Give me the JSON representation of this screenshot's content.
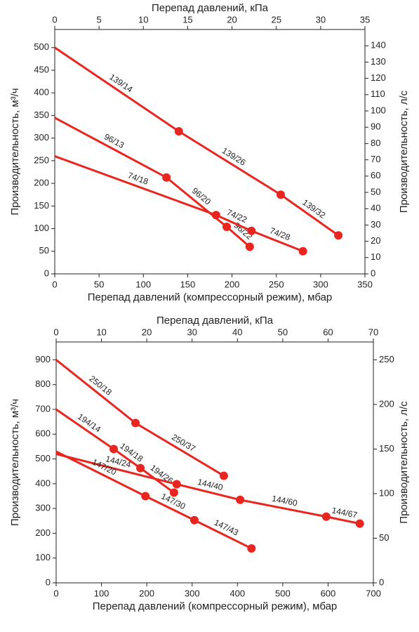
{
  "chart_data": [
    {
      "type": "line",
      "x_label": "Перепад давлений (компрессорный режим), мбар",
      "x2_label": "Перепад давлений, кПа",
      "y_label": "Производительность, м³/ч",
      "y2_label": "Производительность, л/с",
      "xlim": [
        0,
        350
      ],
      "xticks": [
        0,
        50,
        100,
        150,
        200,
        250,
        300,
        350
      ],
      "x2lim": [
        0,
        35
      ],
      "x2ticks": [
        0,
        5,
        10,
        15,
        20,
        25,
        30,
        35
      ],
      "ylim": [
        0,
        540
      ],
      "yticks": [
        0,
        50,
        100,
        150,
        200,
        250,
        300,
        350,
        400,
        450,
        500
      ],
      "y2lim": [
        0,
        150
      ],
      "y2ticks": [
        0,
        10,
        20,
        30,
        40,
        50,
        60,
        70,
        80,
        90,
        100,
        110,
        120,
        130,
        140
      ],
      "series": [
        {
          "color": "#e8261f",
          "x": [
            0,
            140,
            255,
            320
          ],
          "values": [
            500,
            315,
            175,
            85
          ],
          "segment_labels": [
            "139/14",
            "139/26",
            "139/32"
          ]
        },
        {
          "color": "#e8261f",
          "x": [
            0,
            126,
            194,
            220
          ],
          "values": [
            345,
            213,
            104,
            60
          ],
          "segment_labels": [
            "96/13",
            "96/20",
            "96/22"
          ]
        },
        {
          "color": "#e8261f",
          "x": [
            0,
            182,
            222,
            280
          ],
          "values": [
            260,
            130,
            95,
            50
          ],
          "segment_labels": [
            "74/18",
            "74/22",
            "74/28"
          ]
        }
      ]
    },
    {
      "type": "line",
      "x_label": "Перепад давлений (компрессорный режим), мбар",
      "x2_label": "Перепад давлений, кПа",
      "y_label": "Производительность, м³/ч",
      "y2_label": "Производительность, л/с",
      "xlim": [
        0,
        700
      ],
      "xticks": [
        0,
        100,
        200,
        300,
        400,
        500,
        600,
        700
      ],
      "x2lim": [
        0,
        70
      ],
      "x2ticks": [
        0,
        10,
        20,
        30,
        40,
        50,
        60,
        70
      ],
      "ylim": [
        0,
        972
      ],
      "yticks": [
        0,
        100,
        200,
        300,
        400,
        500,
        600,
        700,
        800,
        900
      ],
      "y2lim": [
        0,
        270
      ],
      "y2ticks": [
        0,
        50,
        100,
        150,
        200,
        250
      ],
      "series": [
        {
          "color": "#e8261f",
          "x": [
            0,
            175,
            370
          ],
          "values": [
            900,
            645,
            432
          ],
          "segment_labels": [
            "250/18",
            "250/37"
          ]
        },
        {
          "color": "#e8261f",
          "x": [
            0,
            127,
            186,
            260
          ],
          "values": [
            700,
            540,
            463,
            364
          ],
          "segment_labels": [
            "194/14",
            "194/18",
            "194/26"
          ]
        },
        {
          "color": "#e8261f",
          "x": [
            0,
            266,
            406,
            596,
            670
          ],
          "values": [
            520,
            398,
            335,
            267,
            239
          ],
          "segment_labels": [
            "144/24",
            "144/40",
            "144/60",
            "144/67"
          ]
        },
        {
          "color": "#e8261f",
          "x": [
            0,
            197,
            305,
            431
          ],
          "values": [
            530,
            350,
            253,
            139
          ],
          "segment_labels": [
            "147/20",
            "147/30",
            "147/43"
          ]
        }
      ]
    }
  ]
}
